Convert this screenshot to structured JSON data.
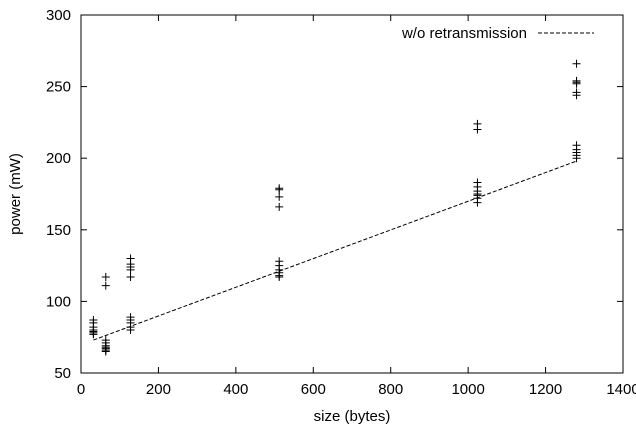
{
  "chart_data": {
    "type": "scatter",
    "title": "",
    "xlabel": "size (bytes)",
    "ylabel": "power (mW)",
    "xlim": [
      0,
      1400
    ],
    "ylim": [
      50,
      300
    ],
    "xticks": [
      0,
      200,
      400,
      600,
      800,
      1000,
      1200,
      1400
    ],
    "yticks": [
      50,
      100,
      150,
      200,
      250,
      300
    ],
    "grid": false,
    "legend_position": "top-right",
    "marker": "plus",
    "points": [
      [
        32,
        87
      ],
      [
        32,
        85
      ],
      [
        32,
        82
      ],
      [
        32,
        80
      ],
      [
        32,
        79
      ],
      [
        32,
        78
      ],
      [
        32,
        77
      ],
      [
        64,
        117
      ],
      [
        64,
        111
      ],
      [
        64,
        73
      ],
      [
        64,
        71
      ],
      [
        64,
        69
      ],
      [
        64,
        68
      ],
      [
        64,
        67
      ],
      [
        64,
        66
      ],
      [
        64,
        65
      ],
      [
        128,
        130
      ],
      [
        128,
        126
      ],
      [
        128,
        124
      ],
      [
        128,
        122
      ],
      [
        128,
        117
      ],
      [
        128,
        89
      ],
      [
        128,
        87
      ],
      [
        128,
        85
      ],
      [
        128,
        82
      ],
      [
        128,
        80
      ],
      [
        512,
        179
      ],
      [
        512,
        178
      ],
      [
        512,
        173
      ],
      [
        512,
        166
      ],
      [
        512,
        128
      ],
      [
        512,
        125
      ],
      [
        512,
        122
      ],
      [
        512,
        120
      ],
      [
        512,
        118
      ],
      [
        512,
        117
      ],
      [
        1024,
        224
      ],
      [
        1024,
        220
      ],
      [
        1024,
        183
      ],
      [
        1024,
        180
      ],
      [
        1024,
        177
      ],
      [
        1024,
        175
      ],
      [
        1024,
        174
      ],
      [
        1024,
        172
      ],
      [
        1024,
        169
      ],
      [
        1280,
        266
      ],
      [
        1280,
        254
      ],
      [
        1280,
        253
      ],
      [
        1280,
        252
      ],
      [
        1280,
        246
      ],
      [
        1280,
        244
      ],
      [
        1280,
        209
      ],
      [
        1280,
        206
      ],
      [
        1280,
        204
      ],
      [
        1280,
        202
      ],
      [
        1280,
        200
      ]
    ],
    "series": [
      {
        "name": "w/o retransmission",
        "style": "dashed",
        "color": "#000000",
        "x": [
          32,
          1280
        ],
        "y": [
          73,
          198
        ]
      }
    ]
  }
}
